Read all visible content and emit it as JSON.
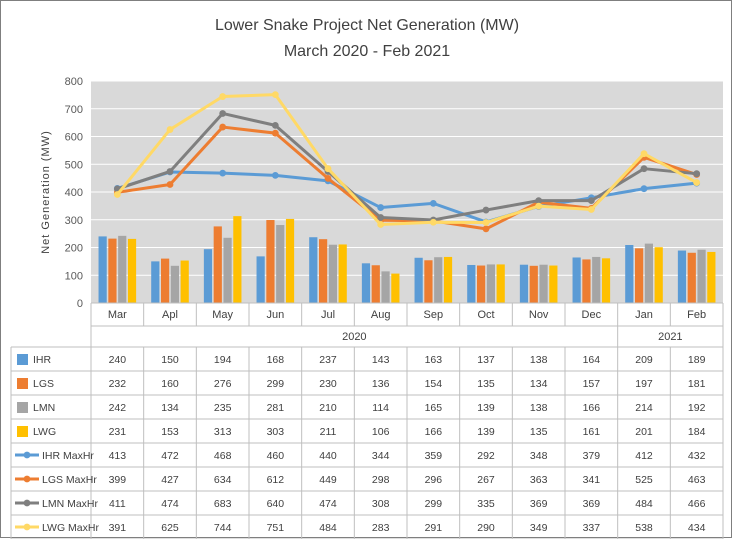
{
  "chart_data": {
    "type": "bar",
    "title": "Lower Snake Project Net Generation (MW)",
    "subtitle": "March 2020 - Feb 2021",
    "ylabel": "Net Generation (MW)",
    "xlabel": "",
    "ylim": [
      0,
      800
    ],
    "yticks": [
      0,
      100,
      200,
      300,
      400,
      500,
      600,
      700,
      800
    ],
    "grid": true,
    "legend": "data-table",
    "categories": [
      "Mar",
      "Apl",
      "May",
      "Jun",
      "Jul",
      "Aug",
      "Sep",
      "Oct",
      "Nov",
      "Dec",
      "Jan",
      "Feb"
    ],
    "year_groups": [
      {
        "label": "2020",
        "start": 0,
        "end": 9
      },
      {
        "label": "2021",
        "start": 10,
        "end": 11
      }
    ],
    "series": [
      {
        "name": "IHR",
        "type": "bar",
        "color": "#5b9bd5",
        "values": [
          240,
          150,
          194,
          168,
          237,
          143,
          163,
          137,
          138,
          164,
          209,
          189
        ]
      },
      {
        "name": "LGS",
        "type": "bar",
        "color": "#ed7d31",
        "values": [
          232,
          160,
          276,
          299,
          230,
          136,
          154,
          135,
          134,
          157,
          197,
          181
        ]
      },
      {
        "name": "LMN",
        "type": "bar",
        "color": "#a5a5a5",
        "values": [
          242,
          134,
          235,
          281,
          210,
          114,
          165,
          139,
          138,
          166,
          214,
          192
        ]
      },
      {
        "name": "LWG",
        "type": "bar",
        "color": "#ffc000",
        "values": [
          231,
          153,
          313,
          303,
          211,
          106,
          166,
          139,
          135,
          161,
          201,
          184
        ]
      },
      {
        "name": "IHR MaxHr",
        "type": "line",
        "color": "#5b9bd5",
        "values": [
          413,
          472,
          468,
          460,
          440,
          344,
          359,
          292,
          348,
          379,
          412,
          432
        ]
      },
      {
        "name": "LGS MaxHr",
        "type": "line",
        "color": "#ed7d31",
        "values": [
          399,
          427,
          634,
          612,
          449,
          298,
          296,
          267,
          363,
          341,
          525,
          463
        ]
      },
      {
        "name": "LMN MaxHr",
        "type": "line",
        "color": "#7f7f7f",
        "values": [
          411,
          474,
          683,
          640,
          474,
          308,
          299,
          335,
          369,
          369,
          484,
          466
        ]
      },
      {
        "name": "LWG MaxHr",
        "type": "line",
        "color": "#ffd966",
        "values": [
          391,
          625,
          744,
          751,
          484,
          283,
          291,
          290,
          349,
          337,
          538,
          434
        ]
      }
    ]
  }
}
